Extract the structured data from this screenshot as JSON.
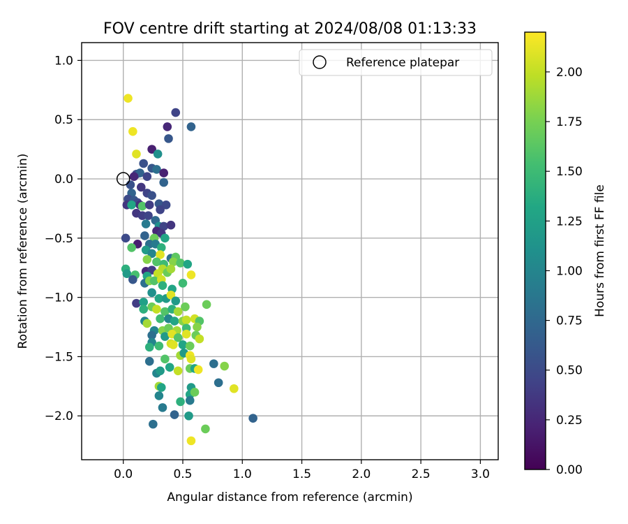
{
  "chart_data": {
    "type": "scatter",
    "title": "FOV centre drift starting at 2024/08/08 01:13:33",
    "xlabel": "Angular distance from reference (arcmin)",
    "ylabel": "Rotation from reference (arcmin)",
    "xlim": [
      -0.35,
      3.15
    ],
    "ylim": [
      -2.37,
      1.15
    ],
    "xticks": [
      0.0,
      0.5,
      1.0,
      1.5,
      2.0,
      2.5,
      3.0
    ],
    "xtick_labels": [
      "0.0",
      "0.5",
      "1.0",
      "1.5",
      "2.0",
      "2.5",
      "3.0"
    ],
    "yticks": [
      1.0,
      0.5,
      0.0,
      -0.5,
      -1.0,
      -1.5,
      -2.0
    ],
    "ytick_labels": [
      "1.0",
      "0.5",
      "0.0",
      "−0.5",
      "−1.0",
      "−1.5",
      "−2.0"
    ],
    "grid": true,
    "legend": {
      "position": "top-right",
      "entries": [
        "Reference platepar"
      ]
    },
    "reference_point": {
      "x": 0.0,
      "y": 0.0,
      "marker": "open-circle"
    },
    "colorbar": {
      "label": "Hours from first FF file",
      "colormap": "viridis",
      "min": 0.0,
      "max": 2.2,
      "ticks": [
        0.0,
        0.25,
        0.5,
        0.75,
        1.0,
        1.25,
        1.5,
        1.75,
        2.0
      ],
      "tick_labels": [
        "0.00",
        "0.25",
        "0.50",
        "0.75",
        "1.00",
        "1.25",
        "1.50",
        "1.75",
        "2.00"
      ]
    },
    "points": [
      [
        0.04,
        0.68,
        2.15
      ],
      [
        0.44,
        0.56,
        0.45
      ],
      [
        0.37,
        0.44,
        0.25
      ],
      [
        0.57,
        0.44,
        0.7
      ],
      [
        0.38,
        0.34,
        0.6
      ],
      [
        0.08,
        0.4,
        2.15
      ],
      [
        0.11,
        0.21,
        2.1
      ],
      [
        0.24,
        0.25,
        0.2
      ],
      [
        0.29,
        0.21,
        1.1
      ],
      [
        0.17,
        0.13,
        0.55
      ],
      [
        0.24,
        0.09,
        0.6
      ],
      [
        0.28,
        0.08,
        0.8
      ],
      [
        0.34,
        0.05,
        0.2
      ],
      [
        0.11,
        0.04,
        0.5
      ],
      [
        0.14,
        0.05,
        0.7
      ],
      [
        0.09,
        0.02,
        0.25
      ],
      [
        0.2,
        0.02,
        0.45
      ],
      [
        0.34,
        -0.03,
        0.7
      ],
      [
        0.06,
        -0.05,
        0.55
      ],
      [
        0.07,
        -0.12,
        0.7
      ],
      [
        0.15,
        -0.07,
        0.35
      ],
      [
        0.2,
        -0.12,
        0.45
      ],
      [
        0.24,
        -0.14,
        0.55
      ],
      [
        0.04,
        -0.17,
        0.5
      ],
      [
        0.09,
        -0.18,
        0.6
      ],
      [
        0.12,
        -0.2,
        0.5
      ],
      [
        0.03,
        -0.22,
        0.35
      ],
      [
        0.07,
        -0.22,
        1.3
      ],
      [
        0.14,
        -0.22,
        0.3
      ],
      [
        0.16,
        -0.23,
        1.6
      ],
      [
        0.22,
        -0.22,
        0.4
      ],
      [
        0.3,
        -0.21,
        0.6
      ],
      [
        0.36,
        -0.22,
        0.5
      ],
      [
        0.31,
        -0.26,
        0.45
      ],
      [
        0.11,
        -0.29,
        0.35
      ],
      [
        0.16,
        -0.31,
        0.4
      ],
      [
        0.21,
        -0.31,
        0.45
      ],
      [
        0.27,
        -0.35,
        0.75
      ],
      [
        0.19,
        -0.38,
        0.9
      ],
      [
        0.3,
        -0.4,
        1.1
      ],
      [
        0.34,
        -0.4,
        0.45
      ],
      [
        0.4,
        -0.39,
        0.35
      ],
      [
        0.28,
        -0.44,
        0.25
      ],
      [
        0.32,
        -0.46,
        0.35
      ],
      [
        0.18,
        -0.48,
        0.7
      ],
      [
        0.02,
        -0.5,
        0.5
      ],
      [
        0.26,
        -0.5,
        1.7
      ],
      [
        0.35,
        -0.5,
        1.3
      ],
      [
        0.12,
        -0.55,
        0.2
      ],
      [
        0.22,
        -0.55,
        0.8
      ],
      [
        0.27,
        -0.55,
        0.9
      ],
      [
        0.07,
        -0.58,
        1.6
      ],
      [
        0.19,
        -0.6,
        1.2
      ],
      [
        0.32,
        -0.58,
        1.4
      ],
      [
        0.24,
        -0.63,
        1.0
      ],
      [
        0.31,
        -0.64,
        2.1
      ],
      [
        0.4,
        -0.67,
        0.8
      ],
      [
        0.44,
        -0.66,
        1.65
      ],
      [
        0.2,
        -0.68,
        1.8
      ],
      [
        0.28,
        -0.7,
        1.6
      ],
      [
        0.34,
        -0.72,
        1.5
      ],
      [
        0.42,
        -0.7,
        1.8
      ],
      [
        0.48,
        -0.71,
        1.6
      ],
      [
        0.54,
        -0.72,
        1.3
      ],
      [
        0.19,
        -0.78,
        0.25
      ],
      [
        0.24,
        -0.77,
        0.4
      ],
      [
        0.33,
        -0.76,
        1.95
      ],
      [
        0.02,
        -0.76,
        1.4
      ],
      [
        0.03,
        -0.8,
        1.2
      ],
      [
        0.1,
        -0.81,
        1.55
      ],
      [
        0.2,
        -0.82,
        1.3
      ],
      [
        0.29,
        -0.8,
        2.0
      ],
      [
        0.37,
        -0.79,
        1.7
      ],
      [
        0.4,
        -0.76,
        1.9
      ],
      [
        0.08,
        -0.85,
        0.6
      ],
      [
        0.18,
        -0.88,
        0.8
      ],
      [
        0.22,
        -0.86,
        1.8
      ],
      [
        0.26,
        -0.86,
        1.6
      ],
      [
        0.32,
        -0.85,
        2.05
      ],
      [
        0.33,
        -0.9,
        1.4
      ],
      [
        0.41,
        -0.93,
        1.3
      ],
      [
        0.5,
        -0.88,
        1.5
      ],
      [
        0.57,
        -0.81,
        2.15
      ],
      [
        0.24,
        -0.96,
        1.1
      ],
      [
        0.3,
        -1.01,
        1.3
      ],
      [
        0.36,
        -1.01,
        1.2
      ],
      [
        0.4,
        -0.98,
        2.1
      ],
      [
        0.44,
        -1.03,
        1.2
      ],
      [
        0.11,
        -1.05,
        0.4
      ],
      [
        0.17,
        -1.04,
        1.25
      ],
      [
        0.24,
        -1.08,
        1.7
      ],
      [
        0.28,
        -1.1,
        2.0
      ],
      [
        0.35,
        -1.12,
        1.6
      ],
      [
        0.41,
        -1.1,
        1.4
      ],
      [
        0.46,
        -1.12,
        1.9
      ],
      [
        0.52,
        -1.08,
        1.7
      ],
      [
        0.17,
        -1.1,
        1.4
      ],
      [
        0.7,
        -1.06,
        1.7
      ],
      [
        0.18,
        -1.2,
        1.0
      ],
      [
        0.2,
        -1.22,
        1.9
      ],
      [
        0.31,
        -1.18,
        1.5
      ],
      [
        0.38,
        -1.18,
        1.0
      ],
      [
        0.43,
        -1.2,
        1.3
      ],
      [
        0.5,
        -1.2,
        1.8
      ],
      [
        0.53,
        -1.19,
        2.0
      ],
      [
        0.6,
        -1.18,
        2.05
      ],
      [
        0.64,
        -1.2,
        1.6
      ],
      [
        0.26,
        -1.28,
        1.0
      ],
      [
        0.33,
        -1.28,
        1.8
      ],
      [
        0.38,
        -1.26,
        1.7
      ],
      [
        0.45,
        -1.28,
        1.9
      ],
      [
        0.53,
        -1.26,
        1.5
      ],
      [
        0.62,
        -1.25,
        1.8
      ],
      [
        0.24,
        -1.32,
        0.8
      ],
      [
        0.35,
        -1.33,
        1.2
      ],
      [
        0.41,
        -1.31,
        2.1
      ],
      [
        0.46,
        -1.34,
        1.6
      ],
      [
        0.53,
        -1.31,
        2.1
      ],
      [
        0.61,
        -1.32,
        1.7
      ],
      [
        0.64,
        -1.35,
        2.0
      ],
      [
        0.24,
        -1.38,
        1.0
      ],
      [
        0.3,
        -1.41,
        1.5
      ],
      [
        0.4,
        -1.39,
        2.05
      ],
      [
        0.5,
        -1.4,
        1.3
      ],
      [
        0.56,
        -1.41,
        1.7
      ],
      [
        0.22,
        -1.42,
        1.4
      ],
      [
        0.42,
        -1.4,
        2.1
      ],
      [
        0.48,
        -1.49,
        1.9
      ],
      [
        0.51,
        -1.47,
        1.2
      ],
      [
        0.56,
        -1.49,
        2.15
      ],
      [
        0.22,
        -1.54,
        0.8
      ],
      [
        0.35,
        -1.52,
        1.6
      ],
      [
        0.57,
        -1.52,
        2.1
      ],
      [
        0.39,
        -1.59,
        1.3
      ],
      [
        0.46,
        -1.62,
        2.0
      ],
      [
        0.56,
        -1.6,
        1.7
      ],
      [
        0.6,
        -1.6,
        1.3
      ],
      [
        0.63,
        -1.61,
        2.15
      ],
      [
        0.76,
        -1.56,
        0.8
      ],
      [
        0.85,
        -1.58,
        1.8
      ],
      [
        0.28,
        -1.64,
        1.0
      ],
      [
        0.31,
        -1.62,
        1.2
      ],
      [
        0.3,
        -1.75,
        1.9
      ],
      [
        0.32,
        -1.76,
        1.3
      ],
      [
        0.57,
        -1.76,
        1.2
      ],
      [
        0.8,
        -1.72,
        0.8
      ],
      [
        0.3,
        -1.83,
        1.0
      ],
      [
        0.56,
        -1.82,
        1.3
      ],
      [
        0.6,
        -1.8,
        1.7
      ],
      [
        0.48,
        -1.88,
        1.4
      ],
      [
        0.56,
        -1.87,
        0.9
      ],
      [
        0.93,
        -1.77,
        2.1
      ],
      [
        0.33,
        -1.93,
        0.9
      ],
      [
        0.43,
        -1.99,
        0.7
      ],
      [
        0.55,
        -2.0,
        1.2
      ],
      [
        0.25,
        -2.07,
        0.8
      ],
      [
        0.69,
        -2.11,
        1.7
      ],
      [
        1.09,
        -2.02,
        0.7
      ],
      [
        0.57,
        -2.21,
        2.15
      ]
    ]
  }
}
